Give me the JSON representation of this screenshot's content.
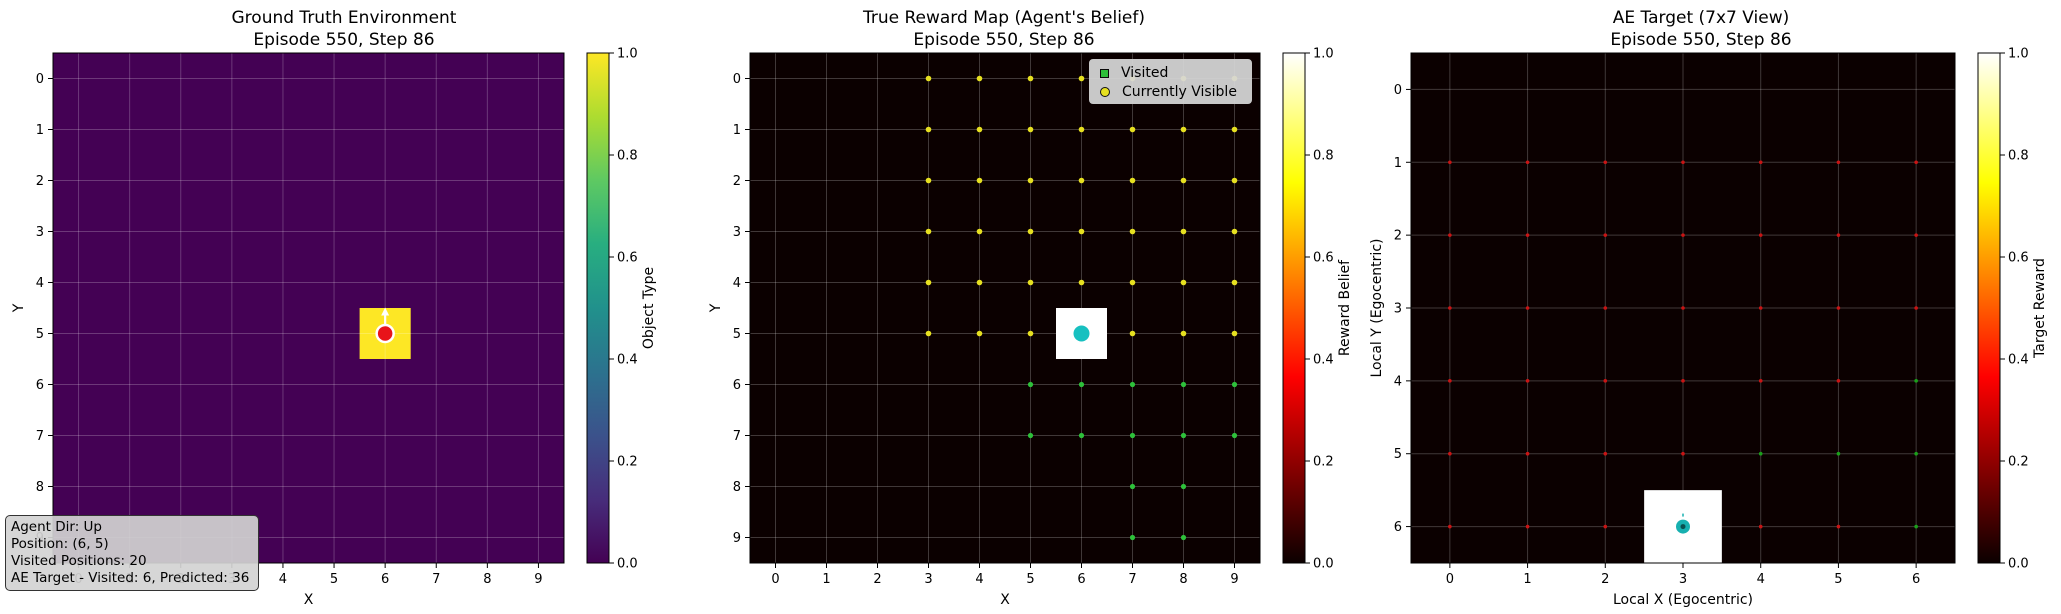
{
  "chart_data": [
    {
      "type": "heatmap",
      "title": "Ground Truth Environment\nEpisode 550, Step 86",
      "xlabel": "X",
      "ylabel": "Y",
      "grid_size": [
        10,
        10
      ],
      "x_ticks": [
        "0",
        "1",
        "2",
        "3",
        "4",
        "5",
        "6",
        "7",
        "8",
        "9"
      ],
      "y_ticks": [
        "0",
        "1",
        "2",
        "3",
        "4",
        "5",
        "6",
        "7",
        "8",
        "9"
      ],
      "colormap": "viridis",
      "colorbar_label": "Object Type",
      "colorbar_ticks": [
        "0.0",
        "0.2",
        "0.4",
        "0.6",
        "0.8",
        "1.0"
      ],
      "colorbar_range": [
        0,
        1
      ],
      "cells": [
        {
          "x": 6,
          "y": 5,
          "value": 1.0
        }
      ],
      "default_value": 0.0,
      "agent": {
        "x": 6,
        "y": 5,
        "dir": "up",
        "color": "#e8141a"
      },
      "grid": true
    },
    {
      "type": "heatmap",
      "title": "True Reward Map (Agent's Belief)\nEpisode 550, Step 86",
      "xlabel": "X",
      "ylabel": "Y",
      "grid_size": [
        10,
        10
      ],
      "x_ticks": [
        "0",
        "1",
        "2",
        "3",
        "4",
        "5",
        "6",
        "7",
        "8",
        "9"
      ],
      "y_ticks": [
        "0",
        "1",
        "2",
        "3",
        "4",
        "5",
        "6",
        "7",
        "8",
        "9"
      ],
      "colormap": "hot",
      "colorbar_label": "Reward Belief",
      "colorbar_ticks": [
        "0.0",
        "0.2",
        "0.4",
        "0.6",
        "0.8",
        "1.0"
      ],
      "colorbar_range": [
        0,
        1
      ],
      "cells": [
        {
          "x": 6,
          "y": 5,
          "value": 1.0
        }
      ],
      "default_value": 0.0,
      "agent": {
        "x": 6,
        "y": 5,
        "color": "#17c0c0"
      },
      "visited_points": [
        [
          5,
          6
        ],
        [
          6,
          6
        ],
        [
          7,
          6
        ],
        [
          8,
          6
        ],
        [
          9,
          6
        ],
        [
          5,
          7
        ],
        [
          6,
          7
        ],
        [
          7,
          7
        ],
        [
          8,
          7
        ],
        [
          9,
          7
        ],
        [
          7,
          8
        ],
        [
          8,
          8
        ],
        [
          7,
          9
        ],
        [
          8,
          9
        ]
      ],
      "visible_points": [
        [
          3,
          0
        ],
        [
          4,
          0
        ],
        [
          5,
          0
        ],
        [
          6,
          0
        ],
        [
          7,
          0
        ],
        [
          8,
          0
        ],
        [
          9,
          0
        ],
        [
          3,
          1
        ],
        [
          4,
          1
        ],
        [
          5,
          1
        ],
        [
          6,
          1
        ],
        [
          7,
          1
        ],
        [
          8,
          1
        ],
        [
          9,
          1
        ],
        [
          3,
          2
        ],
        [
          4,
          2
        ],
        [
          5,
          2
        ],
        [
          6,
          2
        ],
        [
          7,
          2
        ],
        [
          8,
          2
        ],
        [
          9,
          2
        ],
        [
          3,
          3
        ],
        [
          4,
          3
        ],
        [
          5,
          3
        ],
        [
          6,
          3
        ],
        [
          7,
          3
        ],
        [
          8,
          3
        ],
        [
          9,
          3
        ],
        [
          3,
          4
        ],
        [
          4,
          4
        ],
        [
          5,
          4
        ],
        [
          6,
          4
        ],
        [
          7,
          4
        ],
        [
          8,
          4
        ],
        [
          9,
          4
        ],
        [
          3,
          5
        ],
        [
          4,
          5
        ],
        [
          5,
          5
        ],
        [
          7,
          5
        ],
        [
          8,
          5
        ],
        [
          9,
          5
        ]
      ],
      "legend": {
        "position": "top-right",
        "entries": [
          "Visited",
          "Currently Visible"
        ],
        "visited_color": "#2dc03a",
        "visible_color": "#e6e020"
      },
      "grid": true
    },
    {
      "type": "heatmap",
      "title": "AE Target (7x7 View)\nEpisode 550, Step 86",
      "xlabel": "Local X (Egocentric)",
      "ylabel": "Local Y (Egocentric)",
      "grid_size": [
        7,
        7
      ],
      "x_ticks": [
        "0",
        "1",
        "2",
        "3",
        "4",
        "5",
        "6"
      ],
      "y_ticks": [
        "0",
        "1",
        "2",
        "3",
        "4",
        "5",
        "6"
      ],
      "colormap": "hot",
      "colorbar_label": "Target Reward",
      "colorbar_ticks": [
        "0.0",
        "0.2",
        "0.4",
        "0.6",
        "0.8",
        "1.0"
      ],
      "colorbar_range": [
        0,
        1
      ],
      "cells": [
        {
          "x": 3,
          "y": 6,
          "value": 1.0
        }
      ],
      "default_value": 0.0,
      "agent": {
        "x": 3,
        "y": 6,
        "color": "#17b0b0"
      },
      "red_points": [
        [
          0,
          1
        ],
        [
          1,
          1
        ],
        [
          2,
          1
        ],
        [
          3,
          1
        ],
        [
          4,
          1
        ],
        [
          5,
          1
        ],
        [
          6,
          1
        ],
        [
          0,
          2
        ],
        [
          1,
          2
        ],
        [
          2,
          2
        ],
        [
          3,
          2
        ],
        [
          4,
          2
        ],
        [
          5,
          2
        ],
        [
          6,
          2
        ],
        [
          0,
          3
        ],
        [
          1,
          3
        ],
        [
          2,
          3
        ],
        [
          3,
          3
        ],
        [
          4,
          3
        ],
        [
          5,
          3
        ],
        [
          6,
          3
        ],
        [
          0,
          4
        ],
        [
          1,
          4
        ],
        [
          2,
          4
        ],
        [
          3,
          4
        ],
        [
          4,
          4
        ],
        [
          5,
          4
        ],
        [
          0,
          5
        ],
        [
          1,
          5
        ],
        [
          2,
          5
        ],
        [
          3,
          5
        ],
        [
          0,
          6
        ],
        [
          1,
          6
        ],
        [
          2,
          6
        ],
        [
          4,
          6
        ],
        [
          5,
          6
        ]
      ],
      "green_points": [
        [
          6,
          4
        ],
        [
          4,
          5
        ],
        [
          5,
          5
        ],
        [
          6,
          5
        ],
        [
          6,
          6
        ]
      ],
      "grid": true
    }
  ],
  "info": {
    "line1": "Agent Dir: Up",
    "line2": "Position: (6, 5)",
    "line3": "Visited Positions: 20",
    "line4": "AE Target - Visited: 6, Predicted: 36"
  }
}
